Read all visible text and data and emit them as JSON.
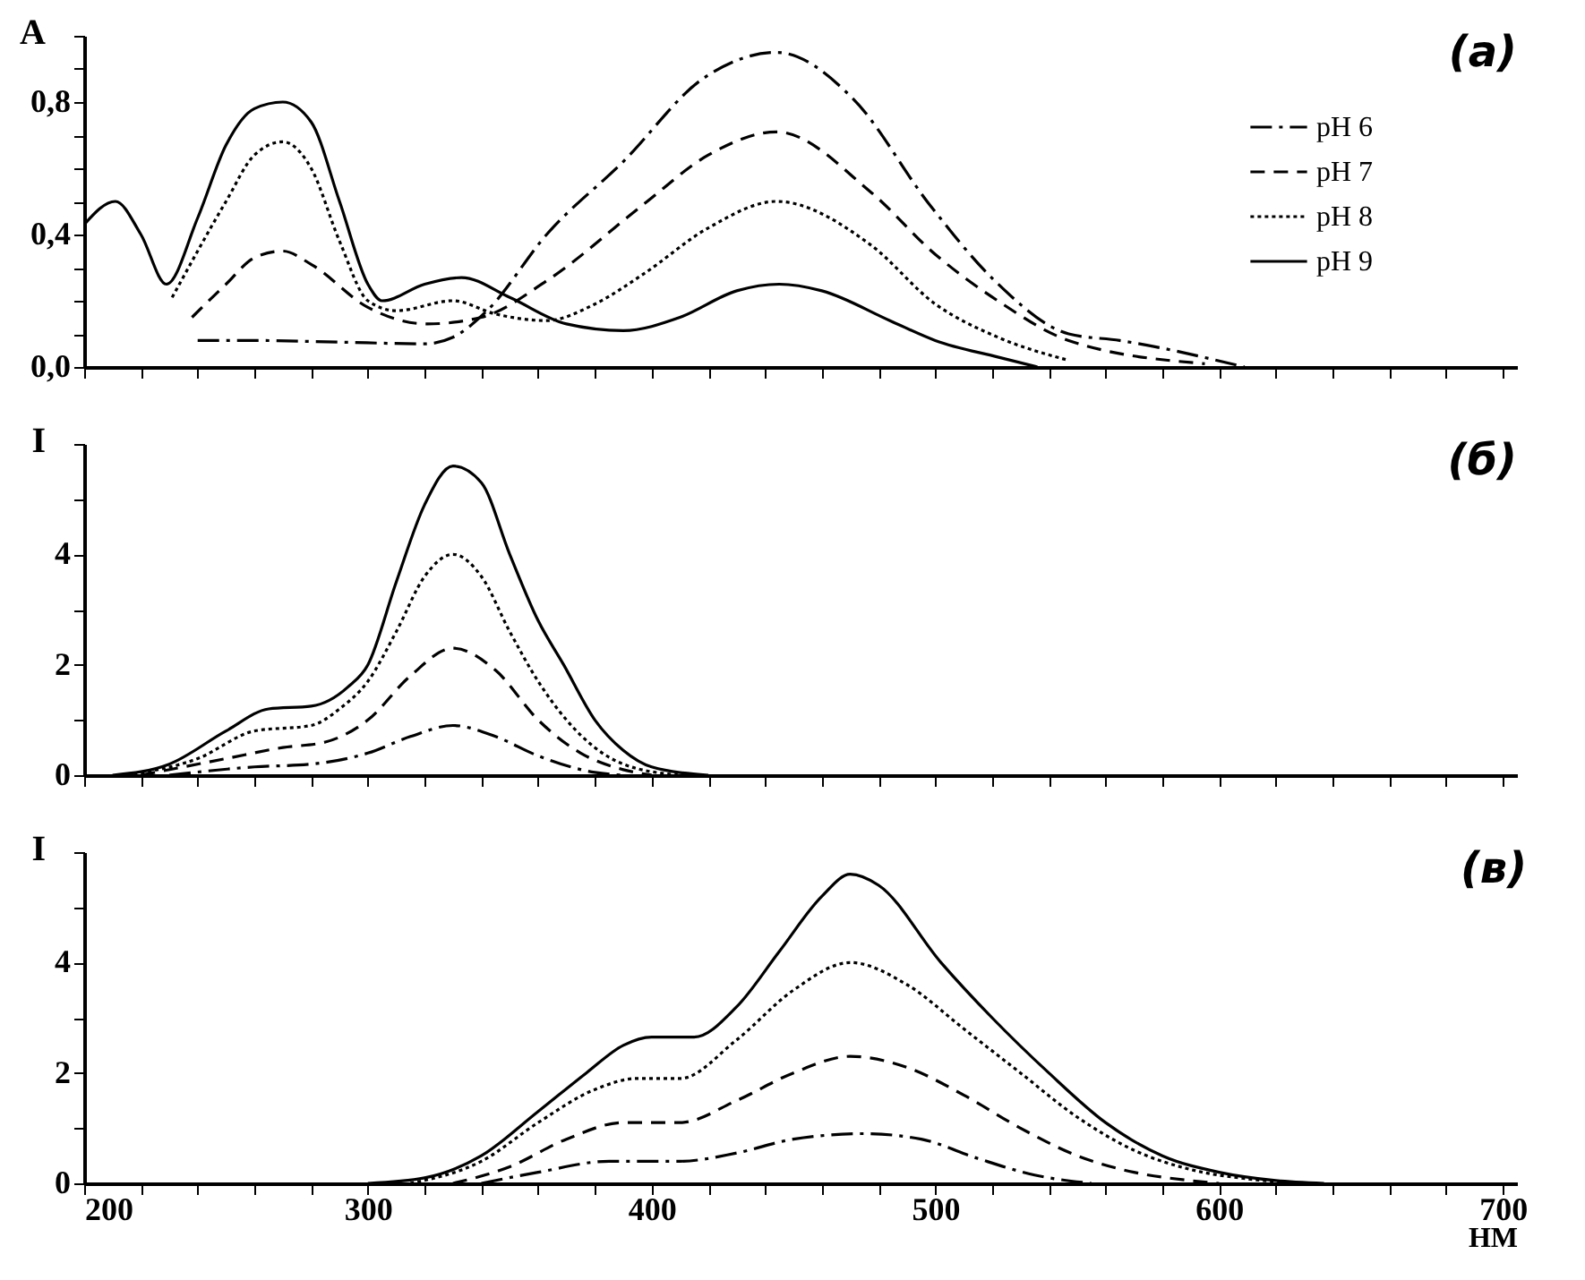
{
  "chart_data": [
    {
      "type": "line",
      "title": "(а)",
      "ylabel": "A",
      "xlim": [
        200,
        705
      ],
      "ylim": [
        0,
        1
      ],
      "tick_labels": "y",
      "legend": "top right",
      "xticks": [
        200,
        {
          "value": 220,
          "label": null
        },
        {
          "value": 240,
          "label": null
        },
        {
          "value": 260,
          "label": null
        },
        {
          "value": 280,
          "label": null
        },
        300,
        {
          "value": 320,
          "label": null
        },
        {
          "value": 340,
          "label": null
        },
        {
          "value": 360,
          "label": null
        },
        {
          "value": 380,
          "label": null
        },
        400,
        {
          "value": 420,
          "label": null
        },
        {
          "value": 440,
          "label": null
        },
        {
          "value": 460,
          "label": null
        },
        {
          "value": 480,
          "label": null
        },
        500,
        {
          "value": 520,
          "label": null
        },
        {
          "value": 540,
          "label": null
        },
        {
          "value": 560,
          "label": null
        },
        {
          "value": 580,
          "label": null
        },
        600,
        {
          "value": 620,
          "label": null
        },
        {
          "value": 640,
          "label": null
        },
        {
          "value": 660,
          "label": null
        },
        {
          "value": 680,
          "label": null
        },
        700
      ],
      "yticks": [
        {
          "value": 0,
          "label": "0,0"
        },
        {
          "value": 0.1,
          "label": null
        },
        {
          "value": 0.2,
          "label": null
        },
        {
          "value": 0.3,
          "label": null
        },
        {
          "value": 0.4,
          "label": "0,4"
        },
        {
          "value": 0.5,
          "label": null
        },
        {
          "value": 0.6,
          "label": null
        },
        {
          "value": 0.7,
          "label": null
        },
        {
          "value": 0.8,
          "label": "0,8"
        },
        {
          "value": 0.9,
          "label": null
        },
        {
          "value": 1,
          "label": null
        }
      ],
      "series": [
        {
          "name": "pH 6",
          "color": "#000000",
          "line_style": "dashdot",
          "x": [
            240,
            260,
            290,
            320,
            330,
            342,
            363,
            390,
            418,
            444,
            471,
            498,
            521,
            547,
            565,
            609
          ],
          "values": [
            0.08,
            0.08,
            0.075,
            0.07,
            0.09,
            0.17,
            0.4,
            0.62,
            0.87,
            0.95,
            0.81,
            0.49,
            0.26,
            0.1,
            0.08,
            0
          ]
        },
        {
          "name": "pH 7",
          "color": "#000000",
          "line_style": "dashed",
          "x": [
            238,
            250,
            260,
            270,
            280,
            300,
            321,
            340,
            363,
            397,
            420,
            444,
            477,
            500,
            522,
            547,
            595
          ],
          "values": [
            0.15,
            0.25,
            0.33,
            0.35,
            0.31,
            0.18,
            0.13,
            0.15,
            0.26,
            0.49,
            0.64,
            0.71,
            0.53,
            0.34,
            0.2,
            0.08,
            0.01
          ]
        },
        {
          "name": "pH 8",
          "color": "#000000",
          "line_style": "dotted",
          "x": [
            231,
            250,
            260,
            270,
            280,
            290,
            300,
            310,
            330,
            345,
            363,
            380,
            397,
            420,
            444,
            477,
            500,
            522,
            547
          ],
          "values": [
            0.21,
            0.5,
            0.64,
            0.68,
            0.6,
            0.38,
            0.2,
            0.17,
            0.2,
            0.16,
            0.14,
            0.19,
            0.28,
            0.42,
            0.5,
            0.37,
            0.19,
            0.09,
            0.02
          ]
        },
        {
          "name": "pH 9",
          "color": "#000000",
          "line_style": "solid",
          "x": [
            200,
            211,
            220,
            229,
            240,
            250,
            260,
            270,
            280,
            290,
            300,
            305,
            320,
            333,
            350,
            370,
            390,
            410,
            430,
            445,
            460,
            484,
            500,
            522,
            536
          ],
          "values": [
            0.43,
            0.5,
            0.4,
            0.25,
            0.45,
            0.67,
            0.78,
            0.8,
            0.74,
            0.5,
            0.25,
            0.2,
            0.25,
            0.27,
            0.21,
            0.13,
            0.11,
            0.15,
            0.23,
            0.25,
            0.23,
            0.14,
            0.08,
            0.03,
            0
          ]
        }
      ]
    },
    {
      "type": "line",
      "title": "(б)",
      "ylabel": "I",
      "xlim": [
        200,
        705
      ],
      "ylim": [
        0,
        6
      ],
      "tick_labels": "y",
      "xticks": [
        200,
        {
          "value": 220,
          "label": null
        },
        {
          "value": 240,
          "label": null
        },
        {
          "value": 260,
          "label": null
        },
        {
          "value": 280,
          "label": null
        },
        300,
        {
          "value": 320,
          "label": null
        },
        {
          "value": 340,
          "label": null
        },
        {
          "value": 360,
          "label": null
        },
        {
          "value": 380,
          "label": null
        },
        400,
        {
          "value": 420,
          "label": null
        },
        {
          "value": 440,
          "label": null
        },
        {
          "value": 460,
          "label": null
        },
        {
          "value": 480,
          "label": null
        },
        500,
        {
          "value": 520,
          "label": null
        },
        {
          "value": 540,
          "label": null
        },
        {
          "value": 560,
          "label": null
        },
        {
          "value": 580,
          "label": null
        },
        600,
        {
          "value": 620,
          "label": null
        },
        {
          "value": 640,
          "label": null
        },
        {
          "value": 660,
          "label": null
        },
        {
          "value": 680,
          "label": null
        },
        700
      ],
      "yticks": [
        0,
        {
          "value": 1,
          "label": null
        },
        2,
        {
          "value": 3,
          "label": null
        },
        4,
        {
          "value": 5,
          "label": null
        },
        {
          "value": 6,
          "label": null
        }
      ],
      "series": [
        {
          "color": "#000000",
          "line_style": "dashdot",
          "x": [
            230,
            260,
            280,
            300,
            315,
            330,
            345,
            360,
            380,
            390
          ],
          "values": [
            0,
            0.15,
            0.2,
            0.4,
            0.7,
            0.9,
            0.7,
            0.35,
            0.05,
            0
          ]
        },
        {
          "color": "#000000",
          "line_style": "dashed",
          "x": [
            220,
            250,
            270,
            285,
            300,
            315,
            330,
            345,
            360,
            375,
            390,
            400
          ],
          "values": [
            0,
            0.3,
            0.5,
            0.6,
            1.0,
            1.8,
            2.3,
            1.9,
            1.0,
            0.4,
            0.1,
            0
          ]
        },
        {
          "color": "#000000",
          "line_style": "dotted",
          "x": [
            215,
            240,
            260,
            280,
            290,
            300,
            310,
            320,
            330,
            340,
            350,
            360,
            370,
            380,
            390,
            410
          ],
          "values": [
            0,
            0.3,
            0.8,
            0.9,
            1.2,
            1.7,
            2.6,
            3.6,
            4.0,
            3.6,
            2.6,
            1.7,
            1.0,
            0.5,
            0.2,
            0
          ]
        },
        {
          "color": "#000000",
          "line_style": "solid",
          "x": [
            210,
            230,
            250,
            265,
            280,
            293,
            300,
            310,
            320,
            330,
            340,
            350,
            360,
            369,
            380,
            390,
            400,
            420
          ],
          "values": [
            0,
            0.2,
            0.8,
            1.2,
            1.25,
            1.6,
            2.0,
            3.5,
            4.9,
            5.6,
            5.3,
            4.0,
            2.8,
            2.0,
            1.0,
            0.45,
            0.15,
            0
          ]
        }
      ]
    },
    {
      "type": "line",
      "title": "(в)",
      "ylabel": "I",
      "xlabel": "НМ",
      "xlim": [
        200,
        705
      ],
      "ylim": [
        0,
        6
      ],
      "xticks": [
        200,
        {
          "value": 220,
          "label": null
        },
        {
          "value": 240,
          "label": null
        },
        {
          "value": 260,
          "label": null
        },
        {
          "value": 280,
          "label": null
        },
        300,
        {
          "value": 320,
          "label": null
        },
        {
          "value": 340,
          "label": null
        },
        {
          "value": 360,
          "label": null
        },
        {
          "value": 380,
          "label": null
        },
        400,
        {
          "value": 420,
          "label": null
        },
        {
          "value": 440,
          "label": null
        },
        {
          "value": 460,
          "label": null
        },
        {
          "value": 480,
          "label": null
        },
        500,
        {
          "value": 520,
          "label": null
        },
        {
          "value": 540,
          "label": null
        },
        {
          "value": 560,
          "label": null
        },
        {
          "value": 580,
          "label": null
        },
        600,
        {
          "value": 620,
          "label": null
        },
        {
          "value": 640,
          "label": null
        },
        {
          "value": 660,
          "label": null
        },
        {
          "value": 680,
          "label": null
        },
        700
      ],
      "yticks": [
        0,
        {
          "value": 1,
          "label": null
        },
        2,
        {
          "value": 3,
          "label": null
        },
        4,
        {
          "value": 5,
          "label": null
        },
        {
          "value": 6,
          "label": null
        }
      ],
      "series": [
        {
          "color": "#000000",
          "line_style": "dashdot",
          "x": [
            340,
            360,
            385,
            410,
            430,
            450,
            475,
            495,
            515,
            535,
            555
          ],
          "values": [
            0,
            0.2,
            0.4,
            0.4,
            0.55,
            0.8,
            0.9,
            0.8,
            0.45,
            0.15,
            0
          ]
        },
        {
          "color": "#000000",
          "line_style": "dashed",
          "x": [
            330,
            350,
            370,
            390,
            410,
            430,
            450,
            470,
            490,
            510,
            530,
            550,
            570,
            590,
            600
          ],
          "values": [
            0,
            0.3,
            0.8,
            1.1,
            1.1,
            1.5,
            2.0,
            2.3,
            2.1,
            1.6,
            1.0,
            0.5,
            0.2,
            0.05,
            0
          ]
        },
        {
          "color": "#000000",
          "line_style": "dotted",
          "x": [
            315,
            340,
            360,
            380,
            395,
            410,
            430,
            450,
            470,
            490,
            510,
            530,
            550,
            570,
            590,
            610,
            630
          ],
          "values": [
            0,
            0.4,
            1.1,
            1.7,
            1.9,
            1.9,
            2.6,
            3.5,
            4.0,
            3.6,
            2.8,
            2.0,
            1.2,
            0.6,
            0.25,
            0.08,
            0
          ]
        },
        {
          "color": "#000000",
          "line_style": "solid",
          "x": [
            300,
            320,
            340,
            360,
            377,
            390,
            400,
            415,
            430,
            445,
            460,
            470,
            480,
            502,
            520,
            540,
            560,
            580,
            600,
            620,
            637
          ],
          "values": [
            0,
            0.1,
            0.5,
            1.3,
            2.0,
            2.5,
            2.65,
            2.65,
            3.2,
            4.2,
            5.2,
            5.6,
            5.4,
            4.0,
            3.0,
            2.0,
            1.1,
            0.5,
            0.2,
            0.05,
            0
          ]
        }
      ]
    }
  ]
}
